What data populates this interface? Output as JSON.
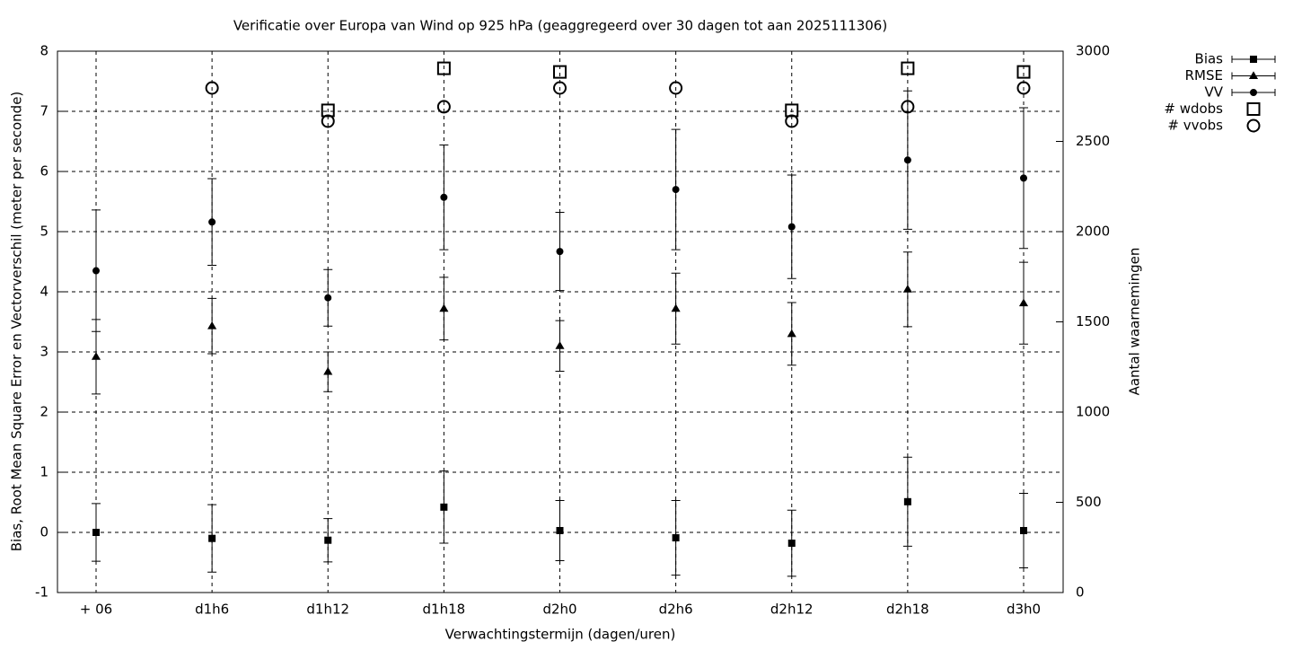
{
  "chart_data": {
    "type": "errorbar",
    "title": "Verificatie over Europa van Wind op 925 hPa (geaggregeerd over 30 dagen tot aan 2025111306)",
    "x_label": "Verwachtingstermijn (dagen/uren)",
    "y_label": "Bias, Root Mean Square Error en Vectorverschil (meter per seconde)",
    "y2_label": "Aantal waarnemingen",
    "categories": [
      "+ 06",
      "d1h6",
      "d1h12",
      "d1h18",
      "d2h0",
      "d2h6",
      "d2h12",
      "d2h18",
      "d3h0"
    ],
    "ylim": [
      -1,
      8
    ],
    "yticks": [
      -1,
      0,
      1,
      2,
      3,
      4,
      5,
      6,
      7,
      8
    ],
    "y2lim": [
      0,
      3000
    ],
    "y2ticks": [
      0,
      500,
      1000,
      1500,
      2000,
      2500,
      3000
    ],
    "grid": true,
    "legend": "top-right",
    "series": [
      {
        "name": "Bias",
        "color": "#000000",
        "marker": "square",
        "filled": true,
        "values": [
          0.0,
          -0.1,
          -0.13,
          0.42,
          0.03,
          -0.09,
          -0.18,
          0.51,
          0.03
        ],
        "errors": [
          0.48,
          0.56,
          0.36,
          0.6,
          0.5,
          0.62,
          0.55,
          0.74,
          0.62
        ]
      },
      {
        "name": "RMSE",
        "color": "#000000",
        "marker": "triangle",
        "filled": true,
        "values": [
          2.92,
          3.43,
          2.67,
          3.72,
          3.1,
          3.72,
          3.3,
          4.04,
          3.81
        ],
        "errors": [
          0.62,
          0.46,
          0.33,
          0.52,
          0.42,
          0.59,
          0.52,
          0.62,
          0.68
        ]
      },
      {
        "name": "VV",
        "color": "#000000",
        "marker": "circle",
        "filled": true,
        "values": [
          4.35,
          5.16,
          3.9,
          5.57,
          4.67,
          5.7,
          5.08,
          6.19,
          5.89
        ],
        "errors": [
          1.01,
          0.72,
          0.47,
          0.87,
          0.65,
          1.0,
          0.86,
          1.15,
          1.17
        ]
      },
      {
        "name": "# wdobs",
        "color": "#000000",
        "marker": "square",
        "filled": false,
        "axis": "y2",
        "values": [
          null,
          null,
          2672,
          2905,
          2885,
          null,
          2672,
          2905,
          2885
        ]
      },
      {
        "name": "# vvobs",
        "color": "#000000",
        "marker": "circle",
        "filled": false,
        "axis": "y2",
        "values": [
          null,
          2796,
          2612,
          2692,
          2796,
          2796,
          2612,
          2692,
          2796
        ]
      }
    ]
  }
}
